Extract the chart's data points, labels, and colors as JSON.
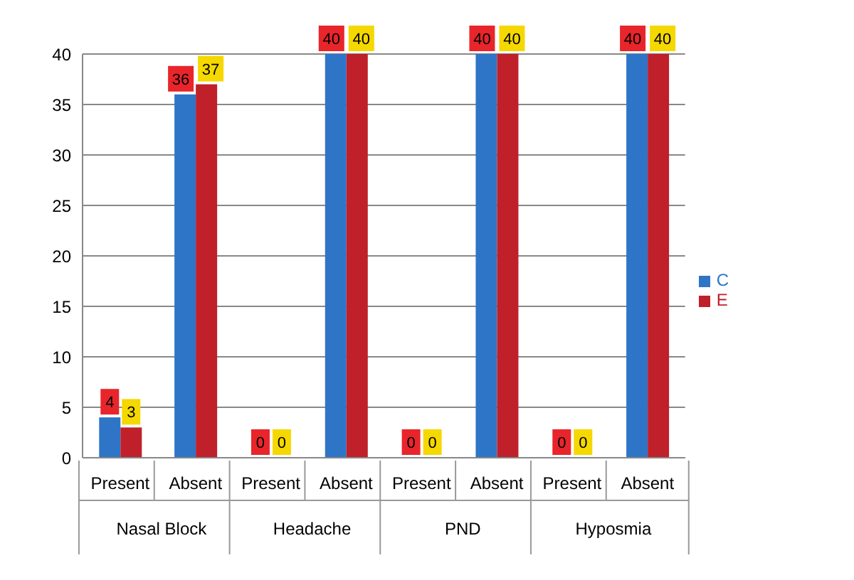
{
  "chart_data": {
    "type": "bar",
    "categories": [
      "Present",
      "Absent",
      "Present",
      "Absent",
      "Present",
      "Absent",
      "Present",
      "Absent"
    ],
    "series": [
      {
        "name": "C",
        "color": "#2e75c8",
        "values": [
          4,
          36,
          0,
          40,
          0,
          40,
          0,
          40
        ]
      },
      {
        "name": "E",
        "color": "#c0202a",
        "values": [
          3,
          37,
          0,
          40,
          0,
          40,
          0,
          40
        ]
      }
    ],
    "annotations": [
      "Nasal Block",
      "Headache",
      "PND",
      "Hyposmia"
    ],
    "ylim": [
      0,
      40
    ],
    "yticks": [
      0,
      5,
      10,
      15,
      20,
      25,
      30,
      35,
      40
    ],
    "grid": "y",
    "legend": "right",
    "data_labels": true
  }
}
